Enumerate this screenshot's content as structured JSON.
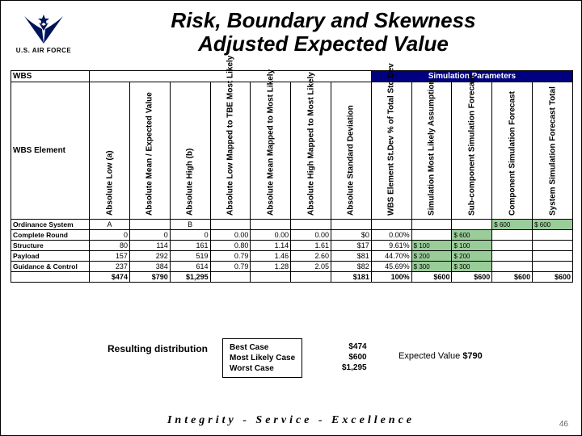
{
  "logo_caption": "U.S. AIR FORCE",
  "title_line1": "Risk, Boundary and Skewness",
  "title_line2": "Adjusted Expected Value",
  "corner_label": "WBS",
  "sim_params_label": "Simulation Parameters",
  "wbs_element_label": "WBS Element",
  "columns": [
    "Absolute Low (a)",
    "Absolute Mean / Expected Value",
    "Absolute High (b)",
    "Absolute Low Mapped to TBE Most Likely",
    "Absolute Mean Mapped to Most Likely",
    "Absolute High Mapped to Most Likely",
    "Absolute Standard Deviation",
    "WBS Element St.Dev % of Total Std.Dev",
    "Simulation Most Likely Assumption",
    "Sub-component Simulation Forecast",
    "Component Simulation Forecast",
    "System Simulation Forecast Total"
  ],
  "rows": [
    {
      "label": "Ordinance System",
      "cells": [
        "A",
        "",
        "B",
        "",
        "",
        "",
        "",
        "",
        "",
        "",
        "$ 600",
        "$ 600"
      ]
    },
    {
      "label": "Complete Round",
      "cells": [
        "0",
        "0",
        "0",
        "0.00",
        "0.00",
        "0.00",
        "$0",
        "0.00%",
        "",
        "$ 600",
        "",
        ""
      ]
    },
    {
      "label": "Structure",
      "cells": [
        "80",
        "114",
        "161",
        "0.80",
        "1.14",
        "1.61",
        "$17",
        "9.61%",
        "$ 100",
        "$ 100",
        "",
        ""
      ]
    },
    {
      "label": "Payload",
      "cells": [
        "157",
        "292",
        "519",
        "0.79",
        "1.46",
        "2.60",
        "$81",
        "44.70%",
        "$ 200",
        "$ 200",
        "",
        ""
      ]
    },
    {
      "label": "Guidance & Control",
      "cells": [
        "237",
        "384",
        "614",
        "0.79",
        "1.28",
        "2.05",
        "$82",
        "45.69%",
        "$ 300",
        "$ 300",
        "",
        ""
      ]
    },
    {
      "label": "",
      "cells": [
        "$474",
        "$790",
        "$1,295",
        "",
        "",
        "",
        "$181",
        "100%",
        "$600",
        "$600",
        "$600",
        "$600"
      ],
      "total": true
    }
  ],
  "resulting_label": "Resulting distribution",
  "cases": [
    "Best Case",
    "Most Likely Case",
    "Worst Case"
  ],
  "case_values": [
    "$474",
    "$600",
    "$1,295"
  ],
  "expected_label": "Expected Value",
  "expected_value": "$790",
  "motto": "Integrity - Service - Excellence",
  "page_num": "46",
  "colors": {
    "navy": "#000080",
    "green": "#99cc99"
  }
}
